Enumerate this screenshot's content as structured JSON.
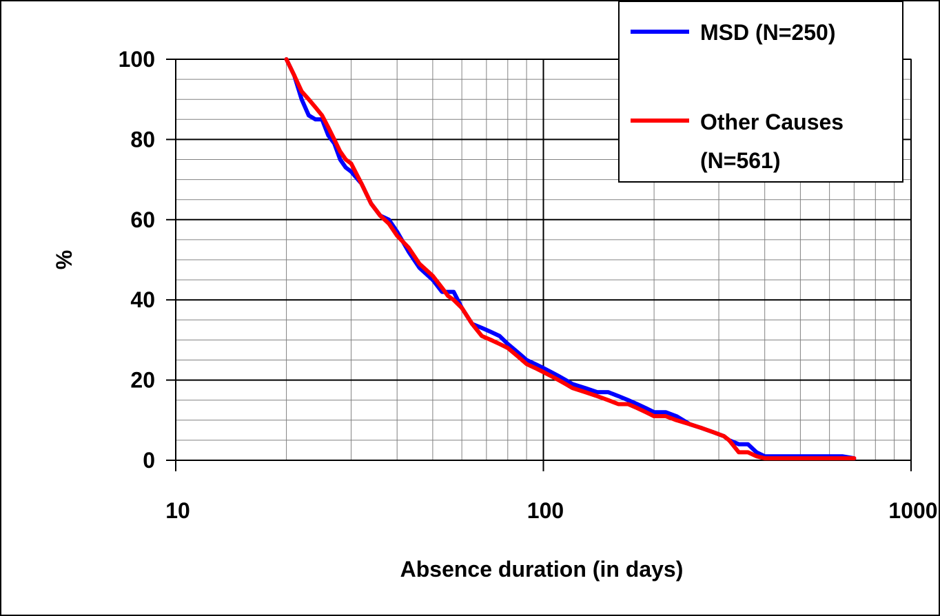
{
  "chart_data": {
    "type": "line",
    "xlabel": "Absence duration (in days)",
    "ylabel": "%",
    "x_scale": "log",
    "xlim": [
      10,
      1000
    ],
    "ylim": [
      0,
      100
    ],
    "x_ticks": [
      10,
      100,
      1000
    ],
    "x_tick_labels": [
      "10",
      "100",
      "1000"
    ],
    "y_ticks": [
      0,
      20,
      40,
      60,
      80,
      100
    ],
    "y_tick_labels": [
      "0",
      "20",
      "40",
      "60",
      "80",
      "100"
    ],
    "grid": true,
    "legend_position": "top-right",
    "series": [
      {
        "name": "MSD (N=250)",
        "label_lines": [
          "MSD (N=250)"
        ],
        "color": "#0000ff",
        "x": [
          20,
          21,
          22,
          23,
          24,
          25,
          26,
          27,
          28,
          29,
          30,
          32,
          34,
          36,
          38,
          40,
          43,
          46,
          50,
          53,
          55,
          57,
          60,
          64,
          68,
          72,
          76,
          80,
          85,
          90,
          95,
          100,
          105,
          110,
          115,
          120,
          130,
          140,
          150,
          160,
          170,
          180,
          190,
          200,
          215,
          230,
          250,
          270,
          290,
          310,
          320,
          340,
          360,
          380,
          400,
          450,
          500,
          550,
          600,
          650,
          700
        ],
        "y": [
          100,
          96,
          90,
          86,
          85,
          85,
          81,
          79,
          75,
          73,
          72,
          69,
          64,
          61,
          60,
          57,
          52,
          48,
          45,
          42,
          42,
          42,
          38,
          34,
          33,
          32,
          31,
          29,
          27,
          25,
          24,
          23,
          22,
          21,
          20,
          19,
          18,
          17,
          17,
          16,
          15,
          14,
          13,
          12,
          12,
          11,
          9,
          8,
          7,
          6,
          5,
          4,
          4,
          2,
          1,
          1,
          1,
          1,
          1,
          1,
          0.5
        ]
      },
      {
        "name": "Other Causes (N=561)",
        "label_lines": [
          "Other Causes",
          "(N=561)"
        ],
        "color": "#ff0000",
        "x": [
          20,
          21,
          22,
          23,
          24,
          25,
          26,
          27,
          28,
          29,
          30,
          32,
          34,
          36,
          38,
          40,
          43,
          46,
          50,
          53,
          55,
          57,
          60,
          64,
          68,
          72,
          76,
          80,
          85,
          90,
          95,
          100,
          105,
          110,
          115,
          120,
          130,
          140,
          150,
          160,
          170,
          180,
          190,
          200,
          215,
          230,
          250,
          270,
          290,
          310,
          320,
          340,
          360,
          380,
          400,
          450,
          500,
          550,
          600,
          650,
          700
        ],
        "y": [
          100,
          96,
          92,
          90,
          88,
          86,
          83,
          80,
          77,
          75,
          74,
          69,
          64,
          61,
          59,
          56,
          53,
          49,
          46,
          43,
          41,
          40,
          38,
          34,
          31,
          30,
          29,
          28,
          26,
          24,
          23,
          22,
          21,
          20,
          19,
          18,
          17,
          16,
          15,
          14,
          14,
          13,
          12,
          11,
          11,
          10,
          9,
          8,
          7,
          6,
          5,
          2,
          2,
          1,
          0.5,
          0.5,
          0.5,
          0.5,
          0.5,
          0.5,
          0.5
        ]
      }
    ]
  }
}
